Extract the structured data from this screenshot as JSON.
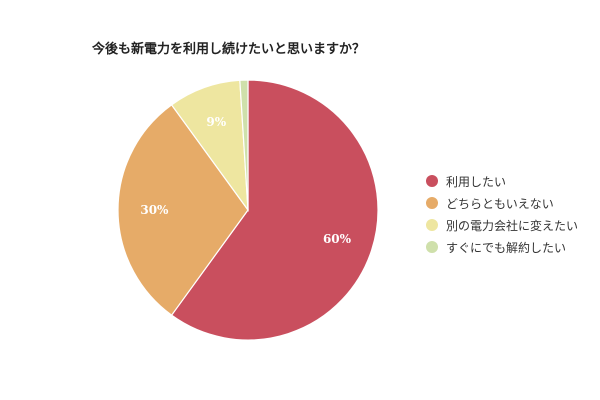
{
  "chart_data": {
    "type": "pie",
    "title": "今後も新電力を利用し続けたいと思いますか？",
    "slices": [
      {
        "label": "利用したい",
        "value": 60,
        "display": "60%",
        "color": "#c94f5e"
      },
      {
        "label": "どちらともいえない",
        "value": 30,
        "display": "30%",
        "color": "#e6ab68"
      },
      {
        "label": "別の電力会社に変えたい",
        "value": 9,
        "display": "9%",
        "color": "#eee6a0"
      },
      {
        "label": "すぐにでも解約したい",
        "value": 1,
        "display": "",
        "color": "#cfe0ab"
      }
    ],
    "legend_position": "right"
  }
}
